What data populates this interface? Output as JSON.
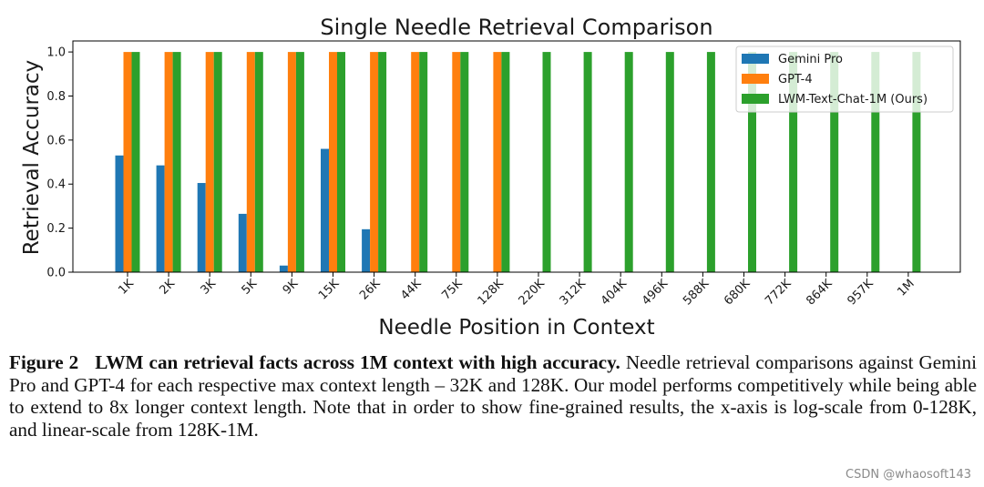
{
  "chart_data": {
    "type": "bar",
    "title": "Single Needle Retrieval Comparison",
    "xlabel": "Needle Position in Context",
    "ylabel": "Retrieval Accuracy",
    "ylim": [
      0,
      1.05
    ],
    "yticks": [
      "0.0",
      "0.2",
      "0.4",
      "0.6",
      "0.8",
      "1.0"
    ],
    "ytick_values": [
      0,
      0.2,
      0.4,
      0.6,
      0.8,
      1.0
    ],
    "categories": [
      "1K",
      "2K",
      "3K",
      "5K",
      "9K",
      "15K",
      "26K",
      "44K",
      "75K",
      "128K",
      "220K",
      "312K",
      "404K",
      "496K",
      "588K",
      "680K",
      "772K",
      "864K",
      "957K",
      "1M"
    ],
    "series": [
      {
        "name": "Gemini Pro",
        "color": "#1f77b4",
        "values": [
          0.53,
          0.485,
          0.405,
          0.265,
          0.03,
          0.56,
          0.195,
          null,
          null,
          null,
          null,
          null,
          null,
          null,
          null,
          null,
          null,
          null,
          null,
          null
        ]
      },
      {
        "name": "GPT-4",
        "color": "#ff7f0e",
        "values": [
          1.0,
          1.0,
          1.0,
          1.0,
          1.0,
          1.0,
          1.0,
          1.0,
          1.0,
          1.0,
          null,
          null,
          null,
          null,
          null,
          null,
          null,
          null,
          null,
          null
        ]
      },
      {
        "name": "LWM-Text-Chat-1M (Ours)",
        "color": "#2ca02c",
        "values": [
          1.0,
          1.0,
          1.0,
          1.0,
          1.0,
          1.0,
          1.0,
          1.0,
          1.0,
          1.0,
          1.0,
          1.0,
          1.0,
          1.0,
          1.0,
          1.0,
          1.0,
          1.0,
          1.0,
          1.0
        ]
      }
    ],
    "legend_position": "top-right",
    "grid": false
  },
  "caption": {
    "label": "Figure 2",
    "headline": "LWM can retrieval facts across 1M context with high accuracy.",
    "body": "Needle retrieval comparisons against Gemini Pro and GPT-4 for each respective max context length – 32K and 128K. Our model performs competitively while being able to extend to 8x longer context length. Note that in order to show fine-grained results, the x-axis is log-scale from 0-128K, and linear-scale from 128K-1M."
  },
  "watermark": "CSDN @whaosoft143"
}
